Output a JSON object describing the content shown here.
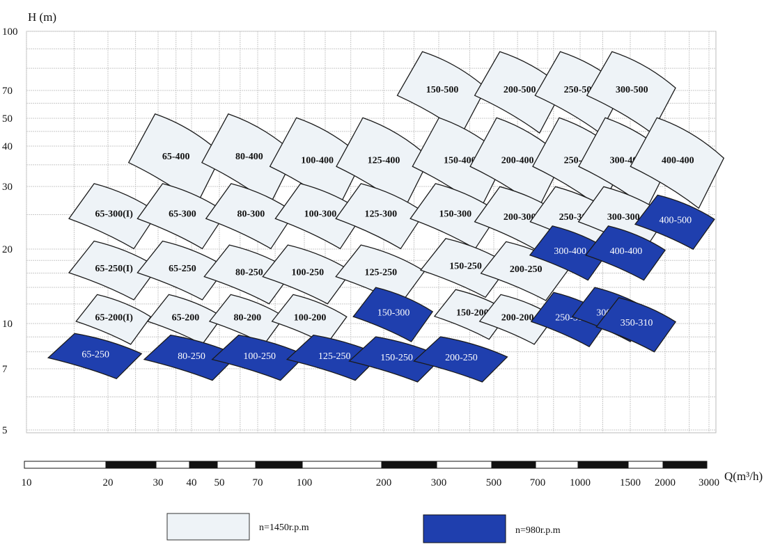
{
  "chart_data": {
    "type": "area",
    "ylabel": "H (m)",
    "xlabel": "Q(m³/h)",
    "x_scale": "log-like (non-uniform)",
    "y_scale": "log",
    "grid": true,
    "x_ticks": [
      10,
      20,
      30,
      40,
      50,
      70,
      100,
      200,
      300,
      500,
      700,
      1000,
      1500,
      2000,
      3000
    ],
    "y_ticks": [
      100,
      70,
      50,
      40,
      30,
      20,
      10,
      7,
      5
    ],
    "xlim": [
      10,
      3000
    ],
    "ylim": [
      5,
      100
    ],
    "legend": {
      "placement": "bottom",
      "items": [
        {
          "label": "n=1450r.p.m",
          "color": "#eef3f7"
        },
        {
          "label": "n=980r.p.m",
          "color": "#1f3fae"
        }
      ]
    },
    "regions": [
      {
        "label": "150-500",
        "speed": 1450,
        "q": 310,
        "h": 70
      },
      {
        "label": "200-500",
        "speed": 1450,
        "q": 610,
        "h": 70
      },
      {
        "label": "250-500",
        "speed": 1450,
        "q": 1000,
        "h": 70
      },
      {
        "label": "300-500",
        "speed": 1450,
        "q": 1520,
        "h": 70
      },
      {
        "label": "65-400",
        "speed": 1450,
        "q": 35,
        "h": 37
      },
      {
        "label": "80-400",
        "speed": 1450,
        "q": 65,
        "h": 37
      },
      {
        "label": "100-400",
        "speed": 1450,
        "q": 112,
        "h": 36
      },
      {
        "label": "125-400",
        "speed": 1450,
        "q": 200,
        "h": 36
      },
      {
        "label": "150-400",
        "speed": 1450,
        "q": 365,
        "h": 36
      },
      {
        "label": "200-400",
        "speed": 1450,
        "q": 600,
        "h": 36
      },
      {
        "label": "250-400",
        "speed": 1450,
        "q": 1000,
        "h": 36
      },
      {
        "label": "300-400",
        "speed": 1450,
        "q": 1450,
        "h": 36
      },
      {
        "label": "400-400",
        "speed": 1450,
        "q": 2250,
        "h": 36
      },
      {
        "label": "65-300(I)",
        "speed": 1450,
        "q": 21,
        "h": 25
      },
      {
        "label": "65-300",
        "speed": 1450,
        "q": 37,
        "h": 25
      },
      {
        "label": "80-300",
        "speed": 1450,
        "q": 66,
        "h": 25
      },
      {
        "label": "100-300",
        "speed": 1450,
        "q": 115,
        "h": 25
      },
      {
        "label": "125-300",
        "speed": 1450,
        "q": 195,
        "h": 25
      },
      {
        "label": "150-300",
        "speed": 1450,
        "q": 350,
        "h": 25
      },
      {
        "label": "200-300",
        "speed": 1450,
        "q": 610,
        "h": 24.5
      },
      {
        "label": "250-300",
        "speed": 1450,
        "q": 960,
        "h": 24.5
      },
      {
        "label": "300-300",
        "speed": 1450,
        "q": 1420,
        "h": 24.5
      },
      {
        "label": "65-250(I)",
        "speed": 1450,
        "q": 21,
        "h": 16.6
      },
      {
        "label": "65-250",
        "speed": 1450,
        "q": 37,
        "h": 16.6
      },
      {
        "label": "80-250",
        "speed": 1450,
        "q": 65,
        "h": 16
      },
      {
        "label": "100-250",
        "speed": 1450,
        "q": 103,
        "h": 16
      },
      {
        "label": "125-250",
        "speed": 1450,
        "q": 195,
        "h": 16
      },
      {
        "label": "150-250",
        "speed": 1450,
        "q": 385,
        "h": 17
      },
      {
        "label": "200-250",
        "speed": 1450,
        "q": 640,
        "h": 16.5
      },
      {
        "label": "65-200(I)",
        "speed": 1450,
        "q": 21,
        "h": 10.5
      },
      {
        "label": "65-200",
        "speed": 1450,
        "q": 38,
        "h": 10.5
      },
      {
        "label": "80-200",
        "speed": 1450,
        "q": 64,
        "h": 10.5
      },
      {
        "label": "100-200",
        "speed": 1450,
        "q": 105,
        "h": 10.5
      },
      {
        "label": "150-200",
        "speed": 1450,
        "q": 410,
        "h": 11
      },
      {
        "label": "200-200",
        "speed": 1450,
        "q": 600,
        "h": 10.5
      },
      {
        "label": "65-250",
        "speed": 980,
        "q": 18,
        "h": 7.8
      },
      {
        "label": "80-250",
        "speed": 980,
        "q": 40,
        "h": 7.7
      },
      {
        "label": "100-250",
        "speed": 980,
        "q": 71,
        "h": 7.7
      },
      {
        "label": "125-250",
        "speed": 980,
        "q": 130,
        "h": 7.7
      },
      {
        "label": "150-250",
        "speed": 980,
        "q": 220,
        "h": 7.6
      },
      {
        "label": "200-250",
        "speed": 980,
        "q": 370,
        "h": 7.6
      },
      {
        "label": "150-300",
        "speed": 980,
        "q": 215,
        "h": 11
      },
      {
        "label": "250-310",
        "speed": 980,
        "q": 930,
        "h": 10.5
      },
      {
        "label": "300-310",
        "speed": 980,
        "q": 1300,
        "h": 11
      },
      {
        "label": "350-310",
        "speed": 980,
        "q": 1580,
        "h": 10
      },
      {
        "label": "300-400",
        "speed": 980,
        "q": 920,
        "h": 19.5
      },
      {
        "label": "400-400",
        "speed": 980,
        "q": 1450,
        "h": 19.5
      },
      {
        "label": "400-500",
        "speed": 980,
        "q": 2200,
        "h": 24
      }
    ]
  }
}
